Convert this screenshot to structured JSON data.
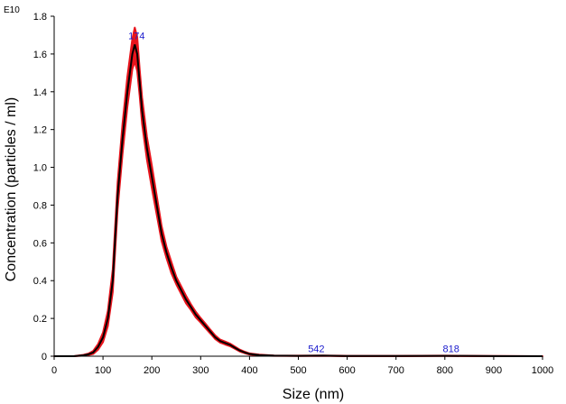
{
  "chart_data": {
    "type": "line",
    "title": "",
    "xlabel": "Size (nm)",
    "ylabel": "Concentration (particles / ml)",
    "y_exponent_label": "E10",
    "xlim": [
      0,
      1000
    ],
    "ylim": [
      0,
      1.8
    ],
    "x_ticks": [
      "0",
      "100",
      "200",
      "300",
      "400",
      "500",
      "600",
      "700",
      "800",
      "900",
      "1000"
    ],
    "y_ticks": [
      "0",
      "0.2",
      "0.4",
      "0.6",
      "0.8",
      "1.0",
      "1.2",
      "1.4",
      "1.6",
      "1.8"
    ],
    "grid": false,
    "legend": "none",
    "colors": {
      "mean": "#000000",
      "error": "#e8141c",
      "peak_label": "#1a1acc"
    },
    "series": [
      {
        "x": [
          0,
          40,
          60,
          70,
          80,
          90,
          100,
          110,
          120,
          130,
          140,
          150,
          160,
          165,
          170,
          175,
          180,
          190,
          200,
          210,
          220,
          230,
          240,
          250,
          260,
          270,
          280,
          290,
          300,
          310,
          320,
          330,
          340,
          350,
          360,
          370,
          380,
          390,
          400,
          420,
          450,
          500,
          550,
          600,
          700,
          800,
          900,
          1000
        ],
        "y": [
          0,
          0,
          0.005,
          0.01,
          0.02,
          0.05,
          0.1,
          0.2,
          0.4,
          0.85,
          1.15,
          1.4,
          1.6,
          1.65,
          1.6,
          1.45,
          1.3,
          1.1,
          0.95,
          0.8,
          0.65,
          0.55,
          0.47,
          0.4,
          0.35,
          0.3,
          0.26,
          0.22,
          0.19,
          0.16,
          0.13,
          0.1,
          0.08,
          0.07,
          0.06,
          0.045,
          0.03,
          0.02,
          0.012,
          0.006,
          0.003,
          0.002,
          0.003,
          0.001,
          0.001,
          0.002,
          0.0005,
          0
        ],
        "error": [
          0,
          0,
          0.002,
          0.004,
          0.008,
          0.015,
          0.025,
          0.04,
          0.06,
          0.07,
          0.08,
          0.08,
          0.08,
          0.09,
          0.09,
          0.07,
          0.07,
          0.06,
          0.06,
          0.05,
          0.04,
          0.03,
          0.03,
          0.02,
          0.02,
          0.02,
          0.015,
          0.015,
          0.012,
          0.012,
          0.01,
          0.01,
          0.008,
          0.008,
          0.007,
          0.006,
          0.005,
          0.004,
          0.003,
          0.002,
          0.001,
          0.001,
          0.001,
          0.001,
          0.001,
          0.001,
          0.0005,
          0
        ]
      }
    ],
    "peak_labels": [
      {
        "x": 174,
        "y": 1.66,
        "text": "174"
      },
      {
        "x": 542,
        "y": 0.003,
        "text": "542"
      },
      {
        "x": 818,
        "y": 0.002,
        "text": "818"
      }
    ]
  }
}
